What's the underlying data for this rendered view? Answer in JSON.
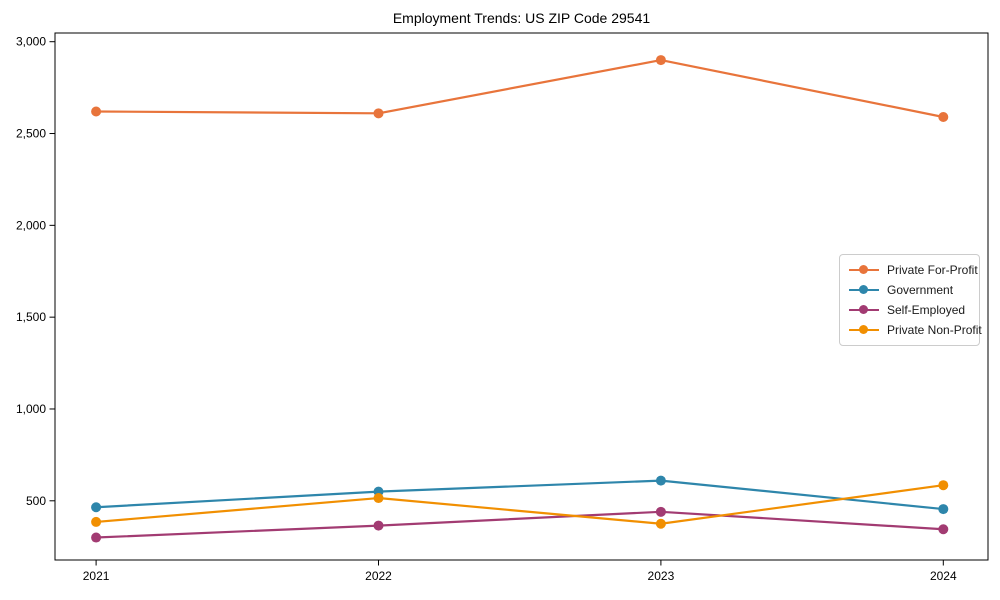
{
  "figure": {
    "title": "Employment Trends: US ZIP Code 29541"
  },
  "chart_data": {
    "type": "line",
    "title": "Employment Trends: US ZIP Code 29541",
    "xlabel": "",
    "ylabel": "",
    "x": [
      2021,
      2022,
      2023,
      2024
    ],
    "x_tick_labels": [
      "2021",
      "2022",
      "2023",
      "2024"
    ],
    "y_ticks": [
      500,
      1000,
      1500,
      2000,
      2500,
      3000
    ],
    "y_tick_labels": [
      "500",
      "1,000",
      "1,500",
      "2,000",
      "2,500",
      "3,000"
    ],
    "xlim": [
      2020.855,
      2024.145
    ],
    "ylim": [
      170,
      3047
    ],
    "grid": false,
    "legend_position": "center-right",
    "marker": "circle",
    "series": [
      {
        "name": "Private For-Profit",
        "color": "#E8743B",
        "values": [
          2620,
          2610,
          2900,
          2590
        ]
      },
      {
        "name": "Government",
        "color": "#2E86AB",
        "values": [
          465,
          550,
          610,
          455
        ]
      },
      {
        "name": "Self-Employed",
        "color": "#A23B72",
        "values": [
          300,
          365,
          440,
          345
        ]
      },
      {
        "name": "Private Non-Profit",
        "color": "#F18F01",
        "values": [
          385,
          515,
          375,
          585
        ]
      }
    ]
  }
}
